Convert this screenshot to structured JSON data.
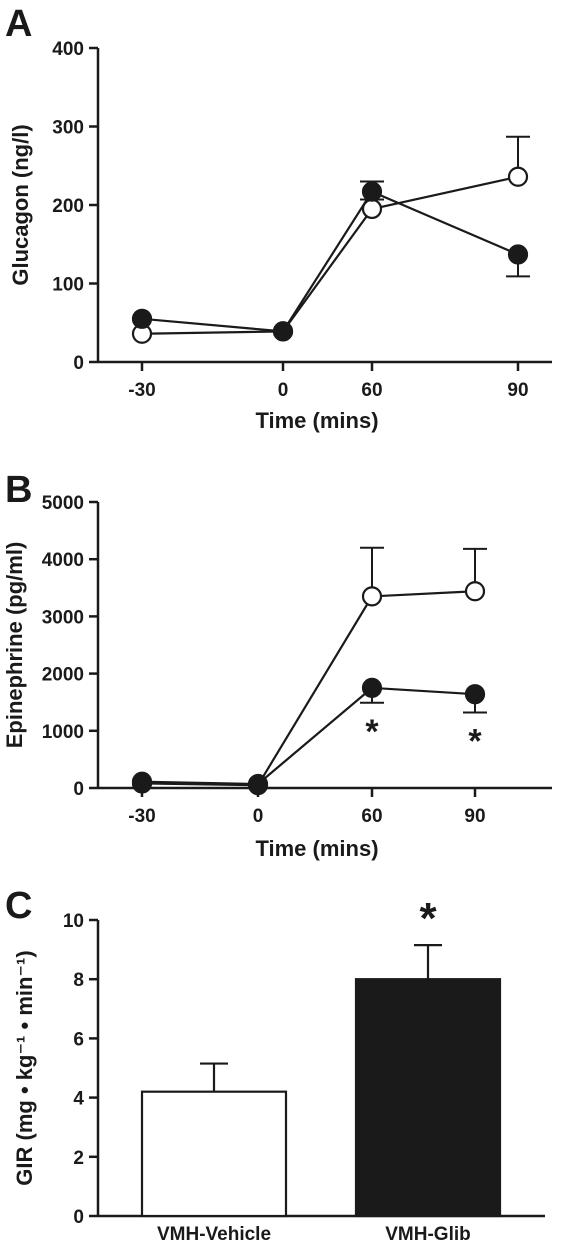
{
  "chart_data": [
    {
      "panel": "A",
      "type": "line",
      "xlabel": "Time (mins)",
      "ylabel": "Glucagon (ng/l)",
      "x": [
        -30,
        0,
        60,
        90
      ],
      "xticks": [
        "-30",
        "0",
        "60",
        "90"
      ],
      "ylim": [
        0,
        400
      ],
      "yticks": [
        0,
        100,
        200,
        300,
        400
      ],
      "grid": false,
      "series": [
        {
          "marker": "open-circle",
          "color": "#ffffff",
          "values": [
            36,
            39,
            195,
            236
          ],
          "error": [
            null,
            null,
            12,
            51
          ]
        },
        {
          "marker": "filled-circle",
          "color": "#1a1a1a",
          "values": [
            55,
            39,
            217,
            137
          ],
          "error": [
            null,
            null,
            13,
            28
          ]
        }
      ],
      "annotations": []
    },
    {
      "panel": "B",
      "type": "line",
      "xlabel": "Time (mins)",
      "ylabel": "Epinephrine (pg/ml)",
      "x": [
        -30,
        0,
        60,
        90
      ],
      "xticks": [
        "-30",
        "0",
        "60",
        "90"
      ],
      "ylim": [
        0,
        5000
      ],
      "yticks": [
        0,
        1000,
        2000,
        3000,
        4000,
        5000
      ],
      "grid": false,
      "series": [
        {
          "marker": "open-circle",
          "color": "#ffffff",
          "values": [
            80,
            50,
            3350,
            3440
          ],
          "error": [
            null,
            null,
            850,
            740
          ]
        },
        {
          "marker": "filled-circle",
          "color": "#1a1a1a",
          "values": [
            110,
            70,
            1750,
            1640
          ],
          "error": [
            null,
            null,
            260,
            320
          ]
        }
      ],
      "annotations": [
        {
          "x": 60,
          "text": "*"
        },
        {
          "x": 90,
          "text": "*"
        }
      ]
    },
    {
      "panel": "C",
      "type": "bar",
      "ylabel": "GIR (mg • kg⁻¹ • min⁻¹)",
      "categories": [
        "VMH-Vehicle",
        "VMH-Glib"
      ],
      "values": [
        4.2,
        8.0
      ],
      "error": [
        0.95,
        1.15
      ],
      "colors": [
        "#ffffff",
        "#1a1a1a"
      ],
      "ylim": [
        0,
        10
      ],
      "yticks": [
        0,
        2,
        4,
        6,
        8,
        10
      ],
      "grid": false,
      "annotations": [
        {
          "category": "VMH-Glib",
          "text": "*"
        }
      ]
    }
  ]
}
